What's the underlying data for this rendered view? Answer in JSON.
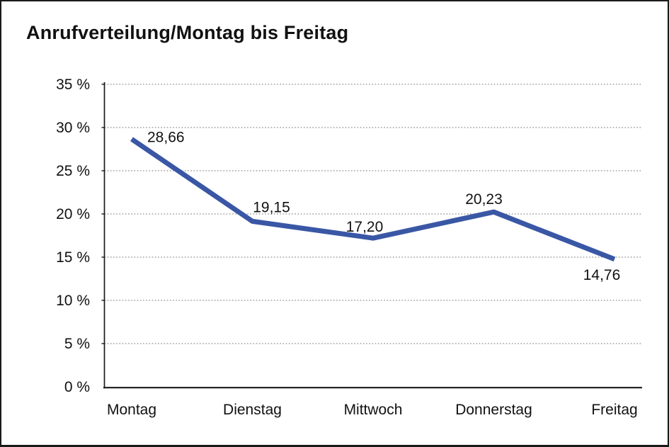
{
  "title": "Anrufverteilung/Montag bis Freitag",
  "chart_data": {
    "type": "line",
    "title": "Anrufverteilung/Montag bis Freitag",
    "categories": [
      "Montag",
      "Dienstag",
      "Mittwoch",
      "Donnerstag",
      "Freitag"
    ],
    "values": [
      28.66,
      19.15,
      17.2,
      20.23,
      14.76
    ],
    "point_labels": [
      "28,66",
      "19,15",
      "17,20",
      "20,23",
      "14,76"
    ],
    "y_tick_labels": [
      "0 %",
      "5 %",
      "10 %",
      "15 %",
      "20 %",
      "25 %",
      "30 %",
      "35 %"
    ],
    "ylim": [
      0,
      35
    ],
    "y_step": 5,
    "xlabel": "",
    "ylabel": "",
    "grid": "horizontal-dotted",
    "legend": "none"
  },
  "colors": {
    "line": "#3A57A5",
    "grid": "#8a8a8a",
    "axis": "#1a1a1a",
    "text": "#111111",
    "background": "#ffffff",
    "border": "#1a1a1a"
  }
}
